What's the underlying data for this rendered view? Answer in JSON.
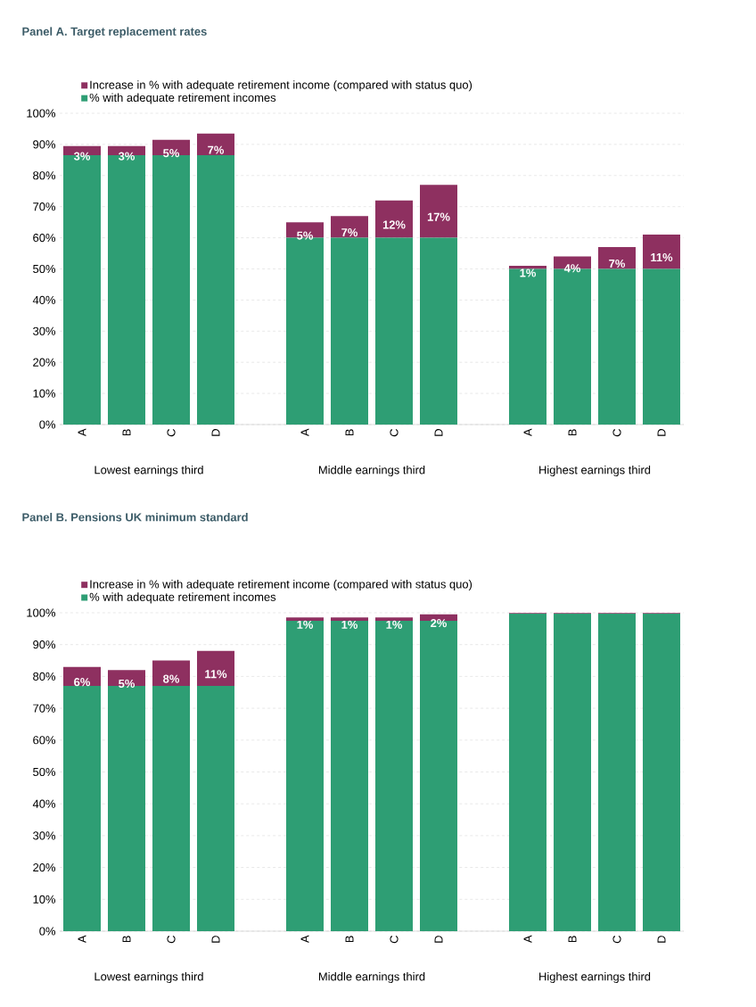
{
  "chart_data": [
    {
      "type": "bar",
      "title": "Panel A. Target replacement rates",
      "stacked": true,
      "grid": "y",
      "legend": "top",
      "categories": [
        "A",
        "B",
        "C",
        "D",
        null,
        "A",
        "B",
        "C",
        "D",
        null,
        "A",
        "B",
        "C",
        "D"
      ],
      "ylim": [
        0,
        100
      ],
      "yticks": [
        {
          "value": 0,
          "label": "0%"
        },
        {
          "value": 10,
          "label": "10%"
        },
        {
          "value": 20,
          "label": "20%"
        },
        {
          "value": 30,
          "label": "30%"
        },
        {
          "value": 40,
          "label": "40%"
        },
        {
          "value": 50,
          "label": "50%"
        },
        {
          "value": 60,
          "label": "60%"
        },
        {
          "value": 70,
          "label": "70%"
        },
        {
          "value": 80,
          "label": "80%"
        },
        {
          "value": 90,
          "label": "90%"
        },
        {
          "value": 100,
          "label": "100%"
        }
      ],
      "annotations": [
        "Lowest earnings third",
        "Middle earnings third",
        "Highest earnings third"
      ],
      "series": [
        {
          "name": "% with adequate retirement incomes",
          "color": "#2e9e74",
          "values": [
            86.5,
            86.5,
            86.5,
            86.5,
            null,
            60,
            60,
            60,
            60,
            null,
            50,
            50,
            50,
            50
          ]
        },
        {
          "name": "Increase in % with adequate retirement income (compared with status quo)",
          "color": "#8e3060",
          "values": [
            3,
            3,
            5,
            7,
            null,
            5,
            7,
            12,
            17,
            null,
            1,
            4,
            7,
            11
          ],
          "value_labels": [
            "3%",
            "3%",
            "5%",
            "7%",
            null,
            "5%",
            "7%",
            "12%",
            "17%",
            null,
            "1%",
            "4%",
            "7%",
            "11%"
          ]
        }
      ]
    },
    {
      "type": "bar",
      "title": "Panel B. Pensions UK minimum standard",
      "stacked": true,
      "grid": "y",
      "legend": "top",
      "categories": [
        "A",
        "B",
        "C",
        "D",
        null,
        "A",
        "B",
        "C",
        "D",
        null,
        "A",
        "B",
        "C",
        "D"
      ],
      "ylim": [
        0,
        100
      ],
      "yticks": [
        {
          "value": 0,
          "label": "0%"
        },
        {
          "value": 10,
          "label": "10%"
        },
        {
          "value": 20,
          "label": "20%"
        },
        {
          "value": 30,
          "label": "30%"
        },
        {
          "value": 40,
          "label": "40%"
        },
        {
          "value": 50,
          "label": "50%"
        },
        {
          "value": 60,
          "label": "60%"
        },
        {
          "value": 70,
          "label": "70%"
        },
        {
          "value": 80,
          "label": "80%"
        },
        {
          "value": 90,
          "label": "90%"
        },
        {
          "value": 100,
          "label": "100%"
        }
      ],
      "annotations": [
        "Lowest earnings third",
        "Middle earnings third",
        "Highest earnings third"
      ],
      "series": [
        {
          "name": "% with adequate retirement incomes",
          "color": "#2e9e74",
          "values": [
            77,
            77,
            77,
            77,
            null,
            97.5,
            97.5,
            97.5,
            97.5,
            null,
            99.7,
            99.7,
            99.7,
            99.7
          ]
        },
        {
          "name": "Increase in % with adequate retirement income (compared with status quo)",
          "color": "#8e3060",
          "values": [
            6,
            5,
            8,
            11,
            null,
            1,
            1,
            1,
            2,
            null,
            0.2,
            0.2,
            0.2,
            0.2
          ],
          "value_labels": [
            "6%",
            "5%",
            "8%",
            "11%",
            null,
            "1%",
            "1%",
            "1%",
            "2%",
            null,
            null,
            null,
            null,
            null
          ]
        }
      ]
    }
  ]
}
